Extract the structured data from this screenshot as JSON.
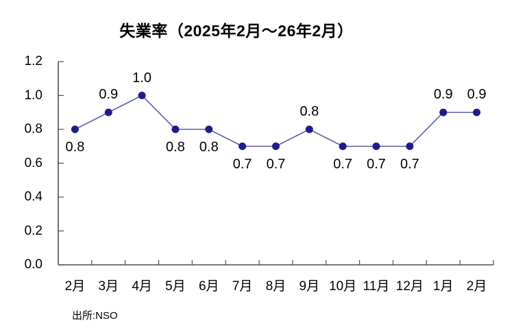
{
  "title": "失業率（2025年2月～26年2月）",
  "source_note": "出所:NSO",
  "chart_data": {
    "type": "line",
    "title": "失業率（2025年2月～26年2月）",
    "categories": [
      "2月",
      "3月",
      "4月",
      "5月",
      "6月",
      "7月",
      "8月",
      "9月",
      "10月",
      "11月",
      "12月",
      "1月",
      "2月"
    ],
    "series": [
      {
        "name": "失業率",
        "values": [
          0.8,
          0.9,
          1.0,
          0.8,
          0.8,
          0.7,
          0.7,
          0.8,
          0.7,
          0.7,
          0.7,
          0.9,
          0.9
        ]
      }
    ],
    "data_labels": [
      "0.8",
      "0.9",
      "1.0",
      "0.8",
      "0.8",
      "0.7",
      "0.7",
      "0.8",
      "0.7",
      "0.7",
      "0.7",
      "0.9",
      "0.9"
    ],
    "data_label_positions": [
      "below",
      "above",
      "above",
      "below",
      "below",
      "below",
      "below",
      "above",
      "below",
      "below",
      "below",
      "above",
      "above"
    ],
    "y_ticks": [
      0.0,
      0.2,
      0.4,
      0.6,
      0.8,
      1.0,
      1.2
    ],
    "y_tick_labels": [
      "0.0",
      "0.2",
      "0.4",
      "0.6",
      "0.8",
      "1.0",
      "1.2"
    ],
    "ylim": [
      0,
      1.2
    ],
    "xlabel": "",
    "ylabel": "",
    "grid": "off",
    "legend": "none",
    "source_note": "出所:NSO",
    "colors": {
      "line": "#5a5aae",
      "marker": "#1c1c8c",
      "axis": "#4d4d4d",
      "text": "#000000",
      "background": "#ffffff"
    }
  }
}
